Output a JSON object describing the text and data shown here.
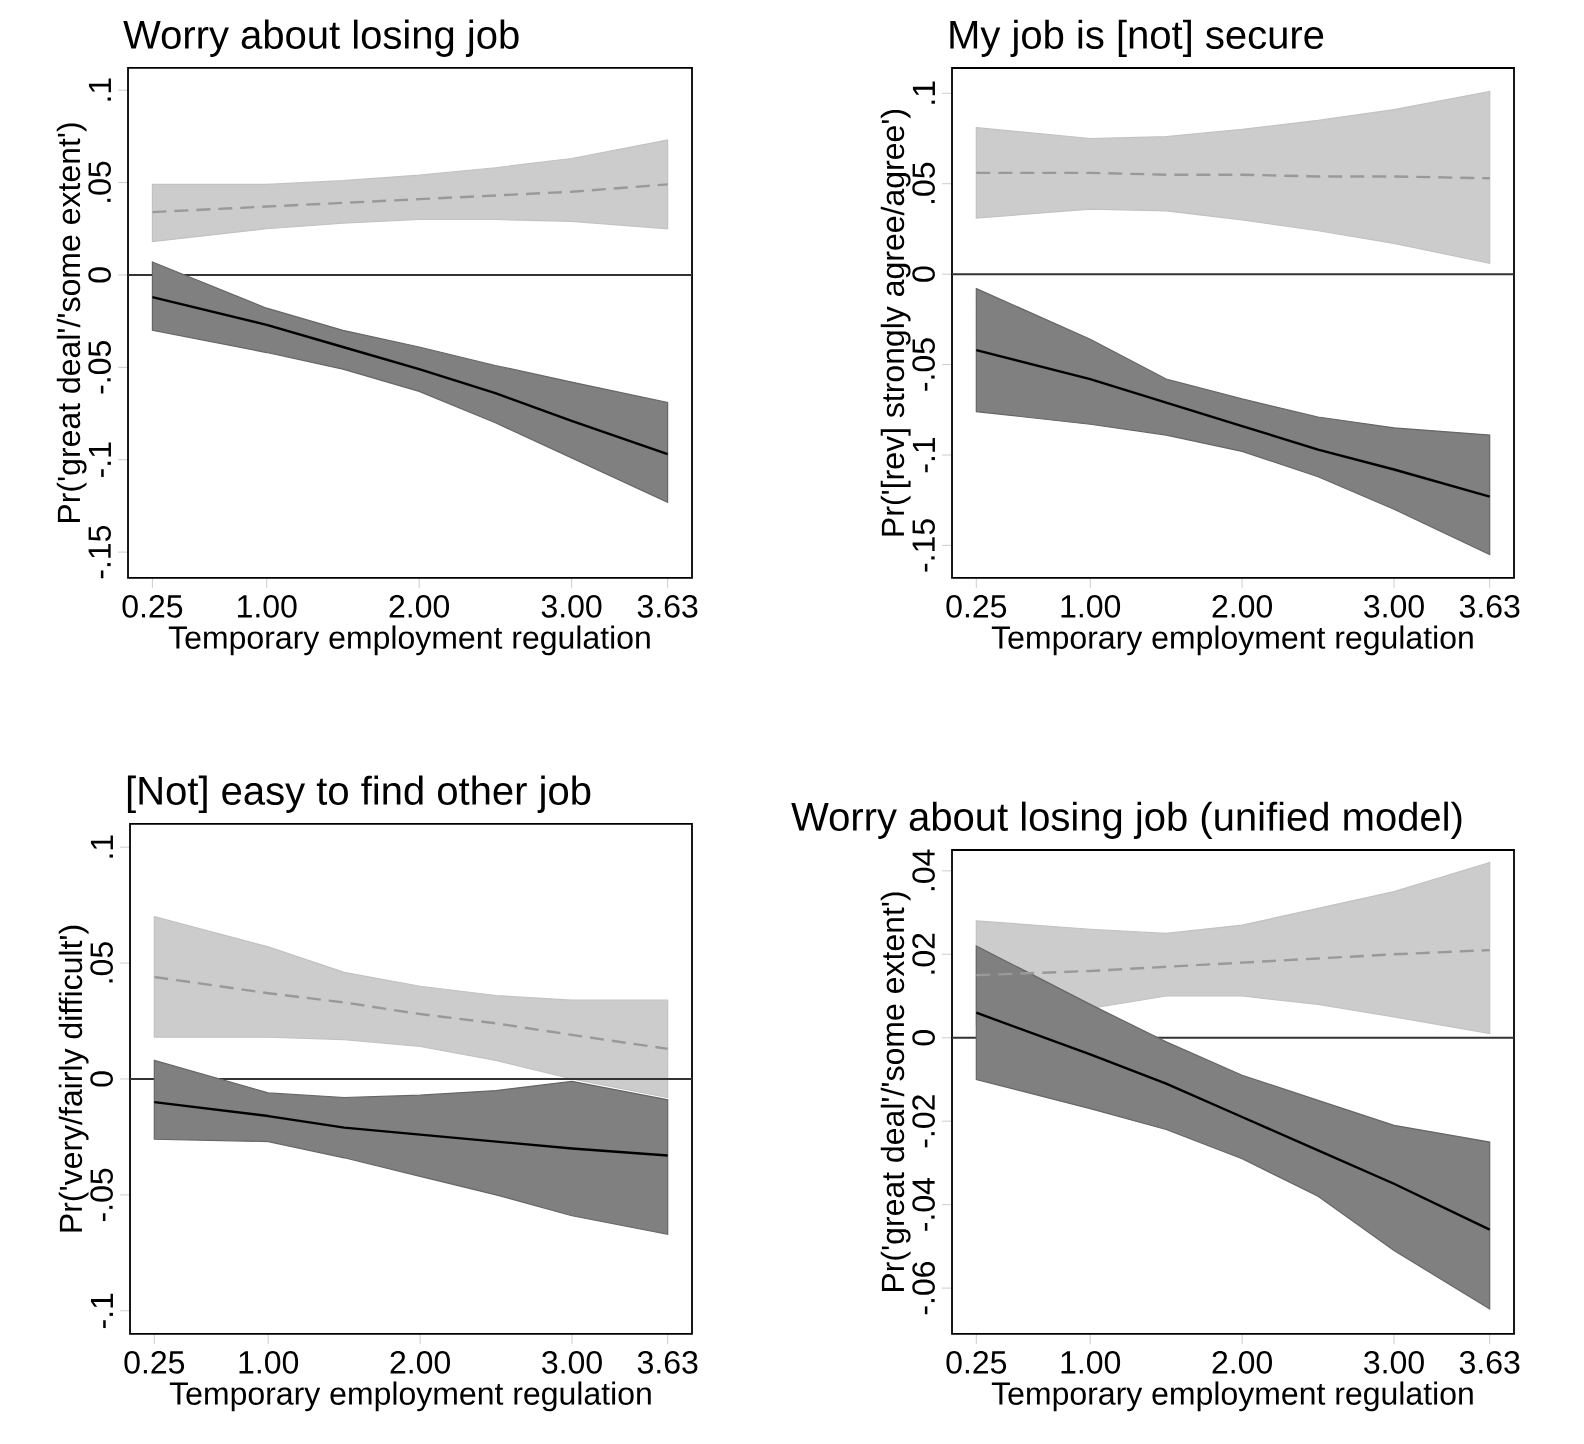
{
  "chart_data": [
    {
      "type": "line",
      "title": "Worry about losing job",
      "xlabel": "Temporary employment regulation",
      "ylabel": "Pr('great deal'/'some extent')",
      "x": [
        0.25,
        1,
        1.5,
        2,
        2.5,
        3,
        3.63
      ],
      "xlim": [
        0.09,
        3.79
      ],
      "ylim": [
        -0.164,
        0.112
      ],
      "xticks": [
        {
          "value": 0.25,
          "label": "0.25"
        },
        {
          "value": 1,
          "label": "1.00"
        },
        {
          "value": 2,
          "label": "2.00"
        },
        {
          "value": 3,
          "label": "3.00"
        },
        {
          "value": 3.63,
          "label": "3.63"
        }
      ],
      "yticks": [
        {
          "value": -0.15,
          "label": "-.15"
        },
        {
          "value": -0.1,
          "label": "-.1"
        },
        {
          "value": -0.05,
          "label": "-.05"
        },
        {
          "value": 0,
          "label": "0"
        },
        {
          "value": 0.05,
          "label": ".05"
        },
        {
          "value": 0.1,
          "label": ".1"
        }
      ],
      "ref_lines": [
        {
          "axis": "y",
          "value": 0,
          "color": "#333333"
        }
      ],
      "series": [
        {
          "color": "#999999",
          "line_style": "dashed",
          "values": [
            0.034,
            0.037,
            0.039,
            0.041,
            0.043,
            0.045,
            0.049
          ],
          "lower": [
            0.018,
            0.025,
            0.028,
            0.03,
            0.03,
            0.029,
            0.025
          ],
          "upper": [
            0.049,
            0.049,
            0.051,
            0.054,
            0.058,
            0.063,
            0.073
          ]
        },
        {
          "color": "#000000",
          "line_style": "solid",
          "values": [
            -0.012,
            -0.027,
            -0.039,
            -0.051,
            -0.064,
            -0.079,
            -0.097
          ],
          "lower": [
            -0.03,
            -0.042,
            -0.051,
            -0.063,
            -0.08,
            -0.099,
            -0.123
          ],
          "upper": [
            0.007,
            -0.018,
            -0.03,
            -0.039,
            -0.049,
            -0.058,
            -0.069
          ]
        }
      ]
    },
    {
      "type": "line",
      "title": "My job is [not] secure",
      "xlabel": "Temporary employment regulation",
      "ylabel": "Pr('[rev] strongly agree/agree')",
      "x": [
        0.25,
        1,
        1.5,
        2,
        2.5,
        3,
        3.63
      ],
      "xlim": [
        0.09,
        3.79
      ],
      "ylim": [
        -0.168,
        0.114
      ],
      "xticks": [
        {
          "value": 0.25,
          "label": "0.25"
        },
        {
          "value": 1,
          "label": "1.00"
        },
        {
          "value": 2,
          "label": "2.00"
        },
        {
          "value": 3,
          "label": "3.00"
        },
        {
          "value": 3.63,
          "label": "3.63"
        }
      ],
      "yticks": [
        {
          "value": -0.15,
          "label": "-.15"
        },
        {
          "value": -0.1,
          "label": "-.1"
        },
        {
          "value": -0.05,
          "label": "-.05"
        },
        {
          "value": 0,
          "label": "0"
        },
        {
          "value": 0.05,
          "label": ".05"
        },
        {
          "value": 0.1,
          "label": ".1"
        }
      ],
      "ref_lines": [
        {
          "axis": "y",
          "value": 0,
          "color": "#333333"
        }
      ],
      "series": [
        {
          "color": "#999999",
          "line_style": "dashed",
          "values": [
            0.056,
            0.056,
            0.055,
            0.055,
            0.054,
            0.054,
            0.053
          ],
          "lower": [
            0.031,
            0.036,
            0.035,
            0.03,
            0.024,
            0.017,
            0.006
          ],
          "upper": [
            0.081,
            0.075,
            0.076,
            0.08,
            0.085,
            0.091,
            0.101
          ]
        },
        {
          "color": "#000000",
          "line_style": "solid",
          "values": [
            -0.042,
            -0.058,
            -0.071,
            -0.084,
            -0.097,
            -0.108,
            -0.123
          ],
          "lower": [
            -0.076,
            -0.083,
            -0.089,
            -0.098,
            -0.112,
            -0.13,
            -0.155
          ],
          "upper": [
            -0.008,
            -0.036,
            -0.058,
            -0.069,
            -0.079,
            -0.085,
            -0.089
          ]
        }
      ]
    },
    {
      "type": "line",
      "title": "[Not] easy to find other job",
      "xlabel": "Temporary employment regulation",
      "ylabel": "Pr('very/fairly difficult')",
      "x": [
        0.25,
        1,
        1.5,
        2,
        2.5,
        3,
        3.63
      ],
      "xlim": [
        0.09,
        3.79
      ],
      "ylim": [
        -0.11,
        0.11
      ],
      "xticks": [
        {
          "value": 0.25,
          "label": "0.25"
        },
        {
          "value": 1,
          "label": "1.00"
        },
        {
          "value": 2,
          "label": "2.00"
        },
        {
          "value": 3,
          "label": "3.00"
        },
        {
          "value": 3.63,
          "label": "3.63"
        }
      ],
      "yticks": [
        {
          "value": -0.1,
          "label": "-.1"
        },
        {
          "value": -0.05,
          "label": "-.05"
        },
        {
          "value": 0,
          "label": "0"
        },
        {
          "value": 0.05,
          "label": ".05"
        },
        {
          "value": 0.1,
          "label": ".1"
        }
      ],
      "ref_lines": [
        {
          "axis": "y",
          "value": 0,
          "color": "#333333"
        }
      ],
      "series": [
        {
          "color": "#999999",
          "line_style": "dashed",
          "values": [
            0.044,
            0.037,
            0.033,
            0.028,
            0.024,
            0.019,
            0.013
          ],
          "lower": [
            0.018,
            0.018,
            0.017,
            0.014,
            0.008,
            0.0,
            -0.008
          ],
          "upper": [
            0.07,
            0.057,
            0.046,
            0.04,
            0.036,
            0.034,
            0.034
          ]
        },
        {
          "color": "#000000",
          "line_style": "solid",
          "values": [
            -0.01,
            -0.016,
            -0.021,
            -0.024,
            -0.027,
            -0.03,
            -0.033
          ],
          "lower": [
            -0.026,
            -0.027,
            -0.034,
            -0.042,
            -0.05,
            -0.059,
            -0.067
          ],
          "upper": [
            0.008,
            -0.006,
            -0.008,
            -0.007,
            -0.005,
            -0.001,
            -0.009
          ]
        }
      ]
    },
    {
      "type": "line",
      "title": "Worry about losing job (unified model)",
      "xlabel": "Temporary employment regulation",
      "ylabel": "Pr('great deal'/'some extent')",
      "x": [
        0.25,
        1,
        1.5,
        2,
        2.5,
        3,
        3.63
      ],
      "xlim": [
        0.09,
        3.79
      ],
      "ylim": [
        -0.071,
        0.045
      ],
      "xticks": [
        {
          "value": 0.25,
          "label": "0.25"
        },
        {
          "value": 1,
          "label": "1.00"
        },
        {
          "value": 2,
          "label": "2.00"
        },
        {
          "value": 3,
          "label": "3.00"
        },
        {
          "value": 3.63,
          "label": "3.63"
        }
      ],
      "yticks": [
        {
          "value": -0.06,
          "label": "-.06"
        },
        {
          "value": -0.04,
          "label": "-.04"
        },
        {
          "value": -0.02,
          "label": "-.02"
        },
        {
          "value": 0,
          "label": "0"
        },
        {
          "value": 0.02,
          "label": ".02"
        },
        {
          "value": 0.04,
          "label": ".04"
        }
      ],
      "ref_lines": [
        {
          "axis": "y",
          "value": 0,
          "color": "#333333"
        }
      ],
      "series": [
        {
          "color": "#999999",
          "line_style": "dashed",
          "values": [
            0.015,
            0.016,
            0.017,
            0.018,
            0.019,
            0.02,
            0.021
          ],
          "lower": [
            0.003,
            0.007,
            0.01,
            0.01,
            0.008,
            0.005,
            0.001
          ],
          "upper": [
            0.028,
            0.026,
            0.025,
            0.027,
            0.031,
            0.035,
            0.042
          ]
        },
        {
          "color": "#000000",
          "line_style": "solid",
          "values": [
            0.006,
            -0.004,
            -0.011,
            -0.019,
            -0.027,
            -0.035,
            -0.046
          ],
          "lower": [
            -0.01,
            -0.017,
            -0.022,
            -0.029,
            -0.038,
            -0.051,
            -0.065
          ],
          "upper": [
            0.022,
            0.008,
            -0.001,
            -0.009,
            -0.015,
            -0.021,
            -0.025
          ]
        }
      ]
    }
  ]
}
